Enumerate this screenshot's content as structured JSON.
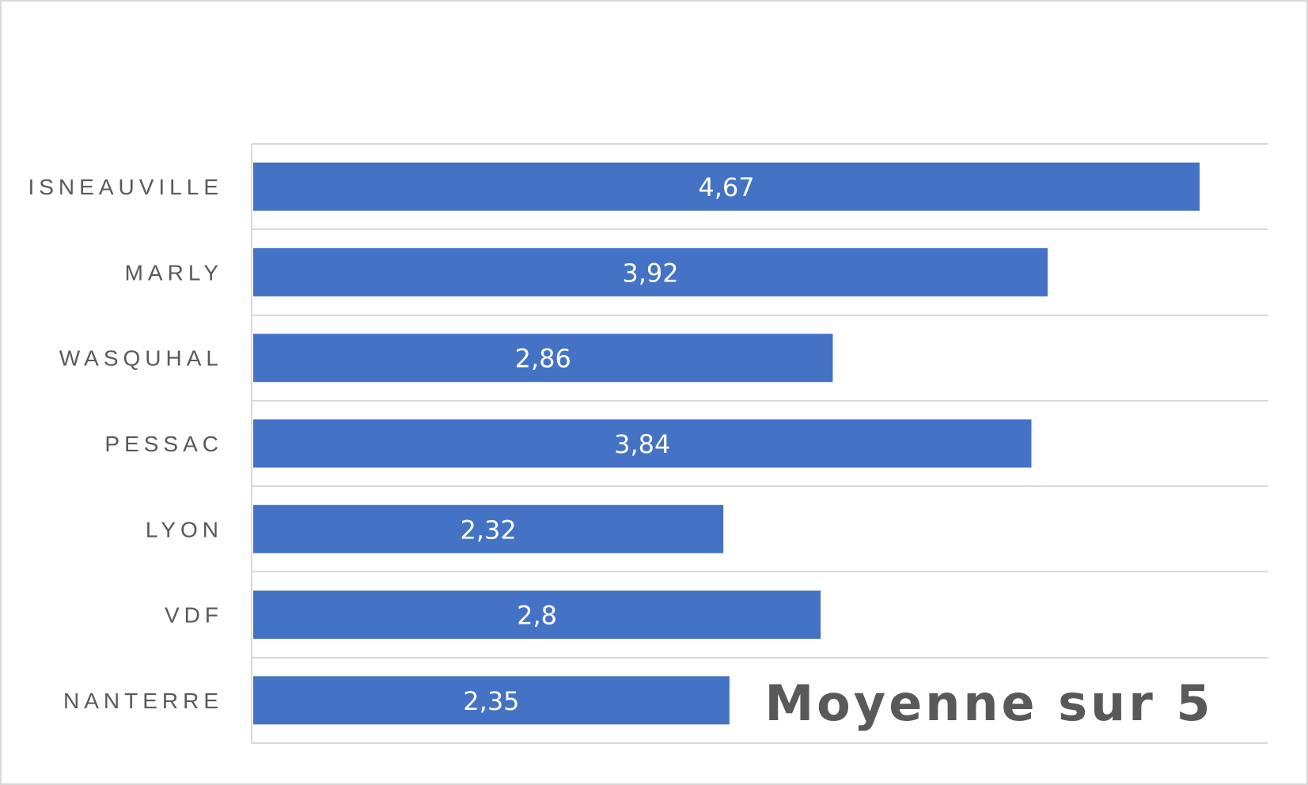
{
  "chart_data": {
    "type": "bar",
    "orientation": "horizontal",
    "title": "Moyenne sur 5",
    "categories": [
      "ISNEAUVILLE",
      "MARLY",
      "WASQUHAL",
      "PESSAC",
      "LYON",
      "VDF",
      "NANTERRE"
    ],
    "values": [
      4.67,
      3.92,
      2.86,
      3.84,
      2.32,
      2.8,
      2.35
    ],
    "data_labels": [
      "4,67",
      "3,92",
      "2,86",
      "3,84",
      "2,32",
      "2,8",
      "2,35"
    ],
    "xlim": [
      0,
      5
    ],
    "grid": true,
    "legend": "none",
    "bar_color": "#4472C4",
    "gridline_color": "#d9d9d9",
    "label_color": "#595959"
  }
}
